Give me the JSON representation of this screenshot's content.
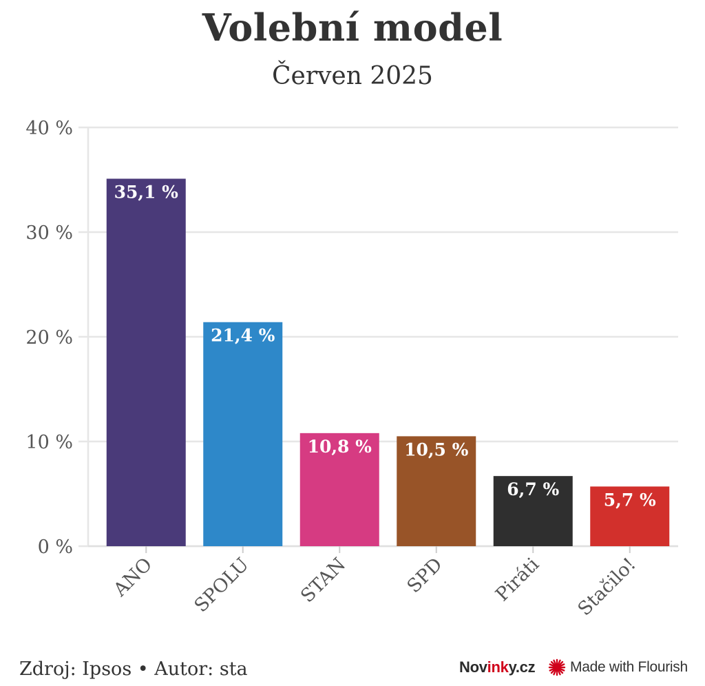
{
  "chart_data": {
    "type": "bar",
    "title": "Volební model",
    "subtitle": "Červen 2025",
    "categories": [
      "ANO",
      "SPOLU",
      "STAN",
      "SPD",
      "Piráti",
      "Stačilo!"
    ],
    "values": [
      35.1,
      21.4,
      10.8,
      10.5,
      6.7,
      5.7
    ],
    "value_labels": [
      "35,1 %",
      "21,4 %",
      "10,8 %",
      "10,5 %",
      "6,7 %",
      "5,7 %"
    ],
    "colors": [
      "#4a3a79",
      "#2e88c9",
      "#d63b82",
      "#985428",
      "#2f2f2f",
      "#d2302c"
    ],
    "ylim": [
      0,
      40
    ],
    "yticks": [
      0,
      10,
      20,
      30,
      40
    ],
    "ytick_labels": [
      "0 %",
      "10 %",
      "20 %",
      "30 %",
      "40 %"
    ],
    "grid": true,
    "xlabel": "",
    "ylabel": ""
  },
  "footer": {
    "source": "Zdroj: Ipsos • Autor: sta",
    "brand_prefix": "Nov",
    "brand_accent": "ink",
    "brand_suffix": "y.cz",
    "flourish": "Made with Flourish"
  }
}
